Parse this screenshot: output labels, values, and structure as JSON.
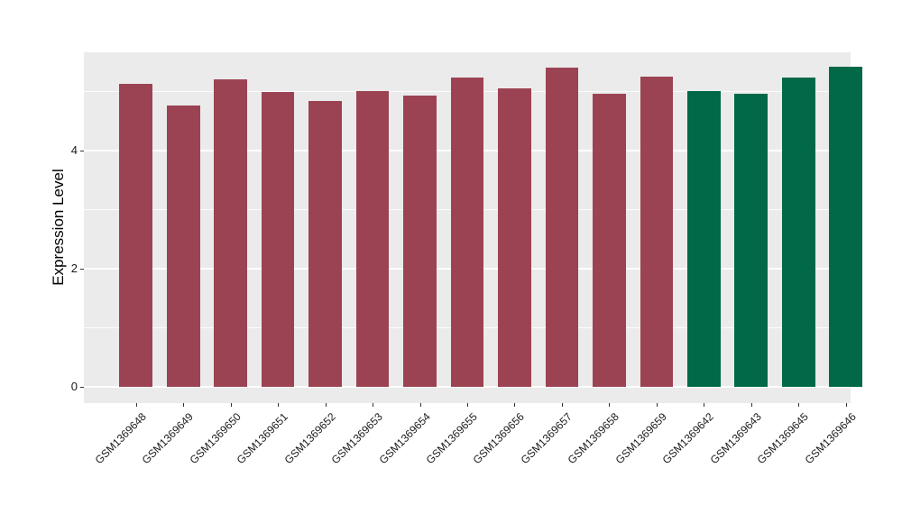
{
  "chart_data": {
    "type": "bar",
    "title": "",
    "xlabel": "",
    "ylabel": "Expression Level",
    "ytick_labels": [
      "0",
      "2",
      "4"
    ],
    "ytick_values": [
      0,
      2,
      4
    ],
    "minor_gridline_values": [
      1,
      3,
      5
    ],
    "ylim": [
      -0.28,
      5.66
    ],
    "grid": "on",
    "legend": "none",
    "categories": [
      "GSM1369648",
      "GSM1369649",
      "GSM1369650",
      "GSM1369651",
      "GSM1369652",
      "GSM1369653",
      "GSM1369654",
      "GSM1369655",
      "GSM1369656",
      "GSM1369657",
      "GSM1369658",
      "GSM1369659",
      "GSM1369642",
      "GSM1369643",
      "GSM1369645",
      "GSM1369646"
    ],
    "values": [
      5.12,
      4.76,
      5.2,
      4.99,
      4.83,
      5.01,
      4.93,
      5.24,
      5.05,
      5.4,
      4.95,
      5.25,
      5.0,
      4.95,
      5.24,
      5.41
    ],
    "bar_groups": [
      "group1",
      "group1",
      "group1",
      "group1",
      "group1",
      "group1",
      "group1",
      "group1",
      "group1",
      "group1",
      "group1",
      "group1",
      "group2",
      "group2",
      "group2",
      "group2"
    ],
    "group_colors": {
      "group1": "#9C4353",
      "group2": "#016948"
    }
  },
  "style": {
    "figure_background": "#FFFFFF",
    "panel_background": "#EBEBEB",
    "gridline_color": "#FFFFFF",
    "tick_mark_color": "#333333",
    "axis_text_color": "#1A1A1A",
    "axis_title_color": "#000000"
  }
}
